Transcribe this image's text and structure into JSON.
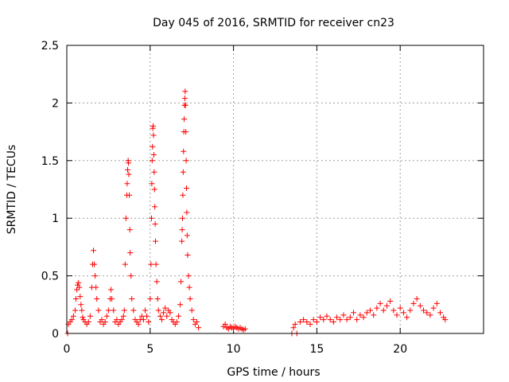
{
  "chart_data": {
    "type": "scatter",
    "title": "Day 045 of 2016, SRMTID for receiver cn23",
    "xlabel": "GPS time / hours",
    "ylabel": "SRMTID / TECUs",
    "xlim": [
      0,
      25
    ],
    "ylim": [
      0,
      2.5
    ],
    "xticks": [
      0,
      5,
      10,
      15,
      20
    ],
    "xtick_labels": [
      "0",
      "5",
      "10",
      "15",
      "20"
    ],
    "yticks": [
      0,
      0.5,
      1,
      1.5,
      2,
      2.5
    ],
    "ytick_labels": [
      "0",
      "0.5",
      "1",
      "1.5",
      "2",
      "2.5"
    ],
    "grid": true,
    "marker": "+",
    "color": "#ff0000",
    "series": [
      {
        "name": "SRMTID",
        "points": [
          [
            0.05,
            0.0
          ],
          [
            0.1,
            0.08
          ],
          [
            0.2,
            0.1
          ],
          [
            0.3,
            0.12
          ],
          [
            0.4,
            0.15
          ],
          [
            0.5,
            0.2
          ],
          [
            0.55,
            0.3
          ],
          [
            0.6,
            0.38
          ],
          [
            0.65,
            0.42
          ],
          [
            0.7,
            0.44
          ],
          [
            0.75,
            0.4
          ],
          [
            0.8,
            0.32
          ],
          [
            0.85,
            0.25
          ],
          [
            0.9,
            0.2
          ],
          [
            0.95,
            0.14
          ],
          [
            1.0,
            0.12
          ],
          [
            1.1,
            0.1
          ],
          [
            1.2,
            0.08
          ],
          [
            1.3,
            0.1
          ],
          [
            1.4,
            0.15
          ],
          [
            1.5,
            0.4
          ],
          [
            1.55,
            0.6
          ],
          [
            1.6,
            0.72
          ],
          [
            1.65,
            0.6
          ],
          [
            1.7,
            0.5
          ],
          [
            1.75,
            0.4
          ],
          [
            1.8,
            0.3
          ],
          [
            1.9,
            0.2
          ],
          [
            2.0,
            0.1
          ],
          [
            2.1,
            0.12
          ],
          [
            2.2,
            0.08
          ],
          [
            2.3,
            0.1
          ],
          [
            2.4,
            0.15
          ],
          [
            2.5,
            0.2
          ],
          [
            2.6,
            0.3
          ],
          [
            2.65,
            0.38
          ],
          [
            2.7,
            0.3
          ],
          [
            2.8,
            0.2
          ],
          [
            2.9,
            0.1
          ],
          [
            3.0,
            0.12
          ],
          [
            3.1,
            0.08
          ],
          [
            3.2,
            0.1
          ],
          [
            3.3,
            0.12
          ],
          [
            3.4,
            0.15
          ],
          [
            3.45,
            0.2
          ],
          [
            3.5,
            0.6
          ],
          [
            3.55,
            1.0
          ],
          [
            3.6,
            1.2
          ],
          [
            3.62,
            1.3
          ],
          [
            3.65,
            1.42
          ],
          [
            3.68,
            1.5
          ],
          [
            3.7,
            1.48
          ],
          [
            3.72,
            1.38
          ],
          [
            3.75,
            1.2
          ],
          [
            3.78,
            0.9
          ],
          [
            3.8,
            0.7
          ],
          [
            3.85,
            0.5
          ],
          [
            3.9,
            0.3
          ],
          [
            4.0,
            0.2
          ],
          [
            4.1,
            0.12
          ],
          [
            4.2,
            0.1
          ],
          [
            4.3,
            0.08
          ],
          [
            4.4,
            0.12
          ],
          [
            4.5,
            0.15
          ],
          [
            4.6,
            0.12
          ],
          [
            4.7,
            0.2
          ],
          [
            4.8,
            0.15
          ],
          [
            4.9,
            0.1
          ],
          [
            5.0,
            0.3
          ],
          [
            5.05,
            0.6
          ],
          [
            5.08,
            1.0
          ],
          [
            5.1,
            1.3
          ],
          [
            5.12,
            1.5
          ],
          [
            5.14,
            1.62
          ],
          [
            5.16,
            1.78
          ],
          [
            5.18,
            1.8
          ],
          [
            5.2,
            1.72
          ],
          [
            5.22,
            1.55
          ],
          [
            5.24,
            1.4
          ],
          [
            5.26,
            1.25
          ],
          [
            5.28,
            1.1
          ],
          [
            5.3,
            0.95
          ],
          [
            5.32,
            0.8
          ],
          [
            5.35,
            0.6
          ],
          [
            5.4,
            0.45
          ],
          [
            5.45,
            0.3
          ],
          [
            5.5,
            0.2
          ],
          [
            5.6,
            0.15
          ],
          [
            5.7,
            0.12
          ],
          [
            5.8,
            0.18
          ],
          [
            5.9,
            0.22
          ],
          [
            6.0,
            0.15
          ],
          [
            6.1,
            0.2
          ],
          [
            6.2,
            0.18
          ],
          [
            6.3,
            0.12
          ],
          [
            6.4,
            0.1
          ],
          [
            6.5,
            0.08
          ],
          [
            6.6,
            0.1
          ],
          [
            6.7,
            0.15
          ],
          [
            6.8,
            0.25
          ],
          [
            6.85,
            0.45
          ],
          [
            6.9,
            0.8
          ],
          [
            6.92,
            0.9
          ],
          [
            6.94,
            1.0
          ],
          [
            6.96,
            1.2
          ],
          [
            6.98,
            1.4
          ],
          [
            7.0,
            1.58
          ],
          [
            7.02,
            1.75
          ],
          [
            7.04,
            1.86
          ],
          [
            7.06,
            1.98
          ],
          [
            7.08,
            2.04
          ],
          [
            7.1,
            2.1
          ],
          [
            7.12,
            1.98
          ],
          [
            7.14,
            1.75
          ],
          [
            7.16,
            1.5
          ],
          [
            7.18,
            1.26
          ],
          [
            7.2,
            1.05
          ],
          [
            7.22,
            0.85
          ],
          [
            7.25,
            0.68
          ],
          [
            7.3,
            0.5
          ],
          [
            7.35,
            0.4
          ],
          [
            7.4,
            0.3
          ],
          [
            7.5,
            0.2
          ],
          [
            7.6,
            0.12
          ],
          [
            7.7,
            0.08
          ],
          [
            7.8,
            0.1
          ],
          [
            7.9,
            0.05
          ],
          [
            9.4,
            0.06
          ],
          [
            9.5,
            0.08
          ],
          [
            9.6,
            0.05
          ],
          [
            9.7,
            0.04
          ],
          [
            9.8,
            0.06
          ],
          [
            9.9,
            0.05
          ],
          [
            10.0,
            0.04
          ],
          [
            10.1,
            0.06
          ],
          [
            10.2,
            0.05
          ],
          [
            10.3,
            0.04
          ],
          [
            10.4,
            0.05
          ],
          [
            10.5,
            0.04
          ],
          [
            10.6,
            0.03
          ],
          [
            10.7,
            0.04
          ],
          [
            13.5,
            0.0
          ],
          [
            13.6,
            0.05
          ],
          [
            13.7,
            0.08
          ],
          [
            13.8,
            0.0
          ],
          [
            14.0,
            0.1
          ],
          [
            14.2,
            0.12
          ],
          [
            14.4,
            0.1
          ],
          [
            14.6,
            0.08
          ],
          [
            14.8,
            0.12
          ],
          [
            15.0,
            0.1
          ],
          [
            15.2,
            0.14
          ],
          [
            15.4,
            0.12
          ],
          [
            15.6,
            0.15
          ],
          [
            15.8,
            0.12
          ],
          [
            16.0,
            0.1
          ],
          [
            16.2,
            0.14
          ],
          [
            16.4,
            0.12
          ],
          [
            16.6,
            0.16
          ],
          [
            16.8,
            0.12
          ],
          [
            17.0,
            0.14
          ],
          [
            17.2,
            0.18
          ],
          [
            17.4,
            0.12
          ],
          [
            17.6,
            0.16
          ],
          [
            17.8,
            0.14
          ],
          [
            18.0,
            0.18
          ],
          [
            18.2,
            0.2
          ],
          [
            18.4,
            0.16
          ],
          [
            18.6,
            0.22
          ],
          [
            18.8,
            0.26
          ],
          [
            19.0,
            0.2
          ],
          [
            19.2,
            0.24
          ],
          [
            19.4,
            0.28
          ],
          [
            19.6,
            0.2
          ],
          [
            19.8,
            0.16
          ],
          [
            20.0,
            0.22
          ],
          [
            20.2,
            0.18
          ],
          [
            20.4,
            0.14
          ],
          [
            20.6,
            0.2
          ],
          [
            20.8,
            0.26
          ],
          [
            21.0,
            0.3
          ],
          [
            21.2,
            0.24
          ],
          [
            21.4,
            0.2
          ],
          [
            21.6,
            0.18
          ],
          [
            21.8,
            0.16
          ],
          [
            22.0,
            0.22
          ],
          [
            22.2,
            0.26
          ],
          [
            22.4,
            0.18
          ],
          [
            22.6,
            0.14
          ],
          [
            22.7,
            0.12
          ]
        ]
      }
    ]
  }
}
